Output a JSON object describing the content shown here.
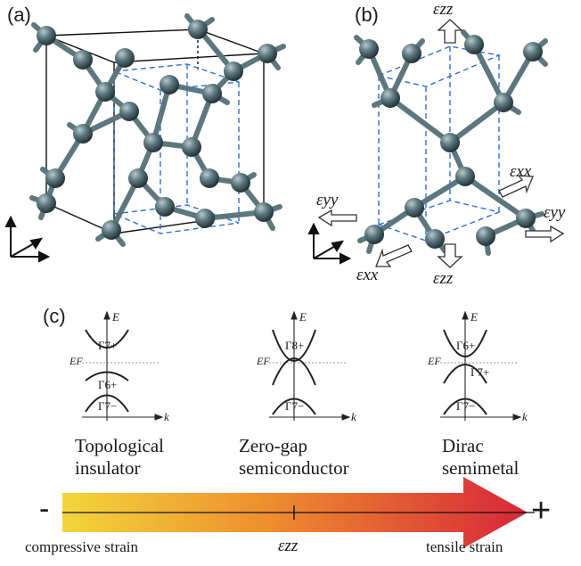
{
  "panels": {
    "a": "(a)",
    "b": "(b)",
    "c": "(c)"
  },
  "strain_labels": {
    "ezz_top": "εzz",
    "ezz_bottom": "εzz",
    "exx_right": "εxx",
    "exx_left": "εxx",
    "eyy_left": "εyy",
    "eyy_right": "εyy"
  },
  "band_diagrams": [
    {
      "axis_energy": "E",
      "axis_k": "k",
      "fermi": "EF",
      "upper": "Γ7+",
      "middle": "Γ6+",
      "lower": "Γ7−",
      "caption_line1": "Topological",
      "caption_line2": "insulator"
    },
    {
      "axis_energy": "E",
      "axis_k": "k",
      "fermi": "EF",
      "upper": "Γ8+",
      "middle": "",
      "lower": "Γ7−",
      "caption_line1": "Zero-gap",
      "caption_line2": "semiconductor"
    },
    {
      "axis_energy": "E",
      "axis_k": "k",
      "fermi": "EF",
      "upper": "Γ6+",
      "middle": "Γ7+",
      "lower": "Γ7−",
      "caption_line1": "Dirac",
      "caption_line2": "semimetal"
    }
  ],
  "arrow": {
    "minus": "-",
    "plus": "+",
    "left_label": "compressive strain",
    "center_label": "εzz",
    "right_label": "tensile strain",
    "colors": {
      "left": "#f2d63a",
      "mid": "#ee8c2e",
      "right": "#d7263a"
    }
  },
  "atom_color": "#4f6b72",
  "dashed_color": "#2f6fd6"
}
